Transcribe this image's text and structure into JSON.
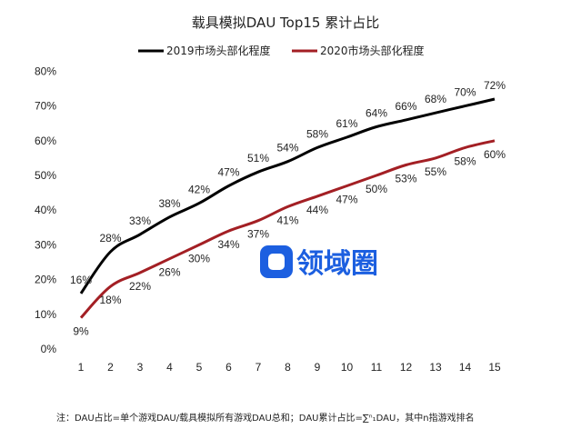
{
  "chart_data": {
    "type": "line",
    "title": "载具模拟DAU Top15 累计占比",
    "x": [
      1,
      2,
      3,
      4,
      5,
      6,
      7,
      8,
      9,
      10,
      11,
      12,
      13,
      14,
      15
    ],
    "ylim": [
      0,
      80
    ],
    "yticks": [
      "0%",
      "10%",
      "20%",
      "30%",
      "40%",
      "50%",
      "60%",
      "70%",
      "80%"
    ],
    "legend_position": "top-center",
    "grid": false,
    "series": [
      {
        "name": "2019市场头部化程度",
        "color": "#000000",
        "values": [
          16,
          28,
          33,
          38,
          42,
          47,
          51,
          54,
          58,
          61,
          64,
          66,
          68,
          70,
          72
        ],
        "labels": [
          "16%",
          "28%",
          "33%",
          "38%",
          "42%",
          "47%",
          "51%",
          "54%",
          "58%",
          "61%",
          "64%",
          "66%",
          "68%",
          "70%",
          "72%"
        ]
      },
      {
        "name": "2020市场头部化程度",
        "color": "#a31f24",
        "values": [
          9,
          18,
          22,
          26,
          30,
          34,
          37,
          41,
          44,
          47,
          50,
          53,
          55,
          58,
          60
        ],
        "labels": [
          "9%",
          "18%",
          "22%",
          "26%",
          "30%",
          "34%",
          "37%",
          "41%",
          "44%",
          "47%",
          "50%",
          "53%",
          "55%",
          "58%",
          "60%"
        ]
      }
    ],
    "footnote": "注：DAU占比=单个游戏DAU/载具模拟所有游戏DAU总和；DAU累计占比=∑ⁿ₁DAU，其中n指游戏排名"
  },
  "watermark": {
    "text": "领域圈",
    "color": "#1c5fe0"
  }
}
